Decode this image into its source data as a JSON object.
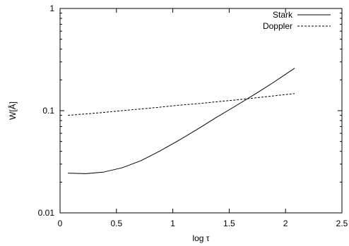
{
  "chart_data": {
    "type": "line",
    "xlabel": "log τ",
    "ylabel": "W[Å]",
    "xlim": [
      0,
      2.5
    ],
    "ylim": [
      0.01,
      1
    ],
    "yscale": "log",
    "x_ticks": [
      0,
      0.5,
      1,
      1.5,
      2,
      2.5
    ],
    "x_tick_labels": [
      "0",
      "0.5",
      "1",
      "1.5",
      "2",
      "2.5"
    ],
    "y_ticks": [
      0.01,
      0.1,
      1
    ],
    "y_tick_labels": [
      "0.01",
      "0.1",
      "1"
    ],
    "grid": false,
    "legend_position": "top-right",
    "series": [
      {
        "name": "Stark",
        "style": "solid",
        "x": [
          0.07,
          0.23,
          0.38,
          0.55,
          0.72,
          0.88,
          1.05,
          1.22,
          1.38,
          1.55,
          1.72,
          1.88,
          2.08
        ],
        "y": [
          0.0245,
          0.0242,
          0.025,
          0.0276,
          0.0325,
          0.04,
          0.051,
          0.066,
          0.085,
          0.11,
          0.143,
          0.185,
          0.26
        ]
      },
      {
        "name": "Doppler",
        "style": "dashed",
        "x": [
          0.07,
          0.23,
          0.38,
          0.55,
          0.72,
          0.88,
          1.05,
          1.22,
          1.38,
          1.55,
          1.72,
          1.88,
          2.08
        ],
        "y": [
          0.09,
          0.093,
          0.096,
          0.1,
          0.104,
          0.108,
          0.113,
          0.117,
          0.122,
          0.127,
          0.133,
          0.139,
          0.147
        ]
      }
    ]
  }
}
